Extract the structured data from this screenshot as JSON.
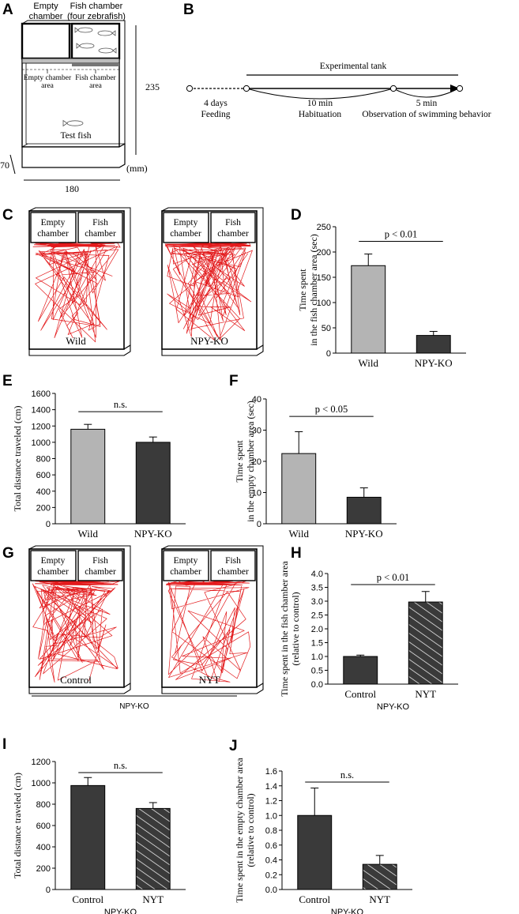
{
  "panels": {
    "A": {
      "letter": "A",
      "empty_chamber_title": [
        "Empty",
        "chamber"
      ],
      "fish_chamber_title": [
        "Fish chamber",
        "(four zebrafish)"
      ],
      "empty_area_label": [
        "Empty chamber",
        "area"
      ],
      "fish_area_label": [
        "Fish chamber",
        "area"
      ],
      "test_fish": "Test fish",
      "dim_height": "235",
      "dim_depth": "70",
      "dim_width": "180",
      "unit": "(mm)"
    },
    "B": {
      "letter": "B",
      "tank_label": "Experimental tank",
      "step1": [
        "4 days",
        "Feeding"
      ],
      "step2": [
        "10 min",
        "Habituation"
      ],
      "step3": [
        "5 min",
        "Observation of swimming behavior"
      ]
    },
    "C": {
      "letter": "C",
      "left_caption": "Wild",
      "right_caption": "NPY-KO",
      "chamber_empty": [
        "Empty",
        "chamber"
      ],
      "chamber_fish": [
        "Fish",
        "chamber"
      ]
    },
    "G": {
      "letter": "G",
      "left_caption": "Control",
      "right_caption": "NYT",
      "group_caption": "NPY-KO",
      "chamber_empty": [
        "Empty",
        "chamber"
      ],
      "chamber_fish": [
        "Fish",
        "chamber"
      ]
    }
  },
  "chart_data": [
    {
      "id": "D",
      "letter": "D",
      "type": "bar",
      "categories": [
        "Wild",
        "NPY-KO"
      ],
      "values": [
        173,
        35
      ],
      "errors": [
        23,
        8
      ],
      "patterns": [
        "gray",
        "dark"
      ],
      "ylabel": [
        "Time spent",
        "in the fish chamber area (sec)"
      ],
      "ylim": [
        0,
        250
      ],
      "yticks": [
        "0",
        "50",
        "100",
        "150",
        "200",
        "250"
      ],
      "significance": "p < 0.01",
      "group_label": ""
    },
    {
      "id": "E",
      "letter": "E",
      "type": "bar",
      "categories": [
        "Wild",
        "NPY-KO"
      ],
      "values": [
        1160,
        1000
      ],
      "errors": [
        60,
        65
      ],
      "patterns": [
        "gray",
        "dark"
      ],
      "ylabel": [
        "Total distance traveled (cm)"
      ],
      "ylim": [
        0,
        1600
      ],
      "yticks": [
        "0",
        "200",
        "400",
        "600",
        "800",
        "1000",
        "1200",
        "1400",
        "1600"
      ],
      "significance": "n.s.",
      "group_label": ""
    },
    {
      "id": "F",
      "letter": "F",
      "type": "bar",
      "categories": [
        "Wild",
        "NPY-KO"
      ],
      "values": [
        22.5,
        8.5
      ],
      "errors": [
        7,
        3
      ],
      "patterns": [
        "gray",
        "dark"
      ],
      "ylabel": [
        "Time spent",
        "in the empty chamber area (sec)"
      ],
      "ylim": [
        0,
        40
      ],
      "yticks": [
        "0",
        "10",
        "20",
        "30",
        "40"
      ],
      "significance": "p < 0.05",
      "group_label": ""
    },
    {
      "id": "H",
      "letter": "H",
      "type": "bar",
      "categories": [
        "Control",
        "NYT"
      ],
      "values": [
        1.0,
        2.97
      ],
      "errors": [
        0.05,
        0.38
      ],
      "patterns": [
        "dark",
        "hatch"
      ],
      "ylabel": [
        "Time spent in the fish chamber area",
        "(relative to control)"
      ],
      "ylim": [
        0,
        4.0
      ],
      "yticks": [
        "0.0",
        "0.5",
        "1.0",
        "1.5",
        "2.0",
        "2.5",
        "3.0",
        "3.5",
        "4.0"
      ],
      "significance": "p < 0.01",
      "group_label": "NPY-KO"
    },
    {
      "id": "I",
      "letter": "I",
      "type": "bar",
      "categories": [
        "Control",
        "NYT"
      ],
      "values": [
        975,
        760
      ],
      "errors": [
        75,
        55
      ],
      "patterns": [
        "dark",
        "hatch"
      ],
      "ylabel": [
        "Total distance traveled (cm)"
      ],
      "ylim": [
        0,
        1200
      ],
      "yticks": [
        "0",
        "200",
        "400",
        "600",
        "800",
        "1000",
        "1200"
      ],
      "significance": "n.s.",
      "group_label": "NPY-KO"
    },
    {
      "id": "J",
      "letter": "J",
      "type": "bar",
      "categories": [
        "Control",
        "NYT"
      ],
      "values": [
        1.0,
        0.34
      ],
      "errors": [
        0.37,
        0.12
      ],
      "patterns": [
        "dark",
        "hatch"
      ],
      "ylabel": [
        "Time spent in the empty chamber area",
        "(relative to control)"
      ],
      "ylim": [
        0,
        1.6
      ],
      "yticks": [
        "0.0",
        "0.2",
        "0.4",
        "0.6",
        "0.8",
        "1.0",
        "1.2",
        "1.4",
        "1.6"
      ],
      "significance": "n.s.",
      "group_label": "NPY-KO"
    }
  ],
  "colors": {
    "gray_bar": "#b4b4b4",
    "dark_bar": "#3a3a3a",
    "trace": "#e31a1c",
    "stroke": "#000000"
  }
}
